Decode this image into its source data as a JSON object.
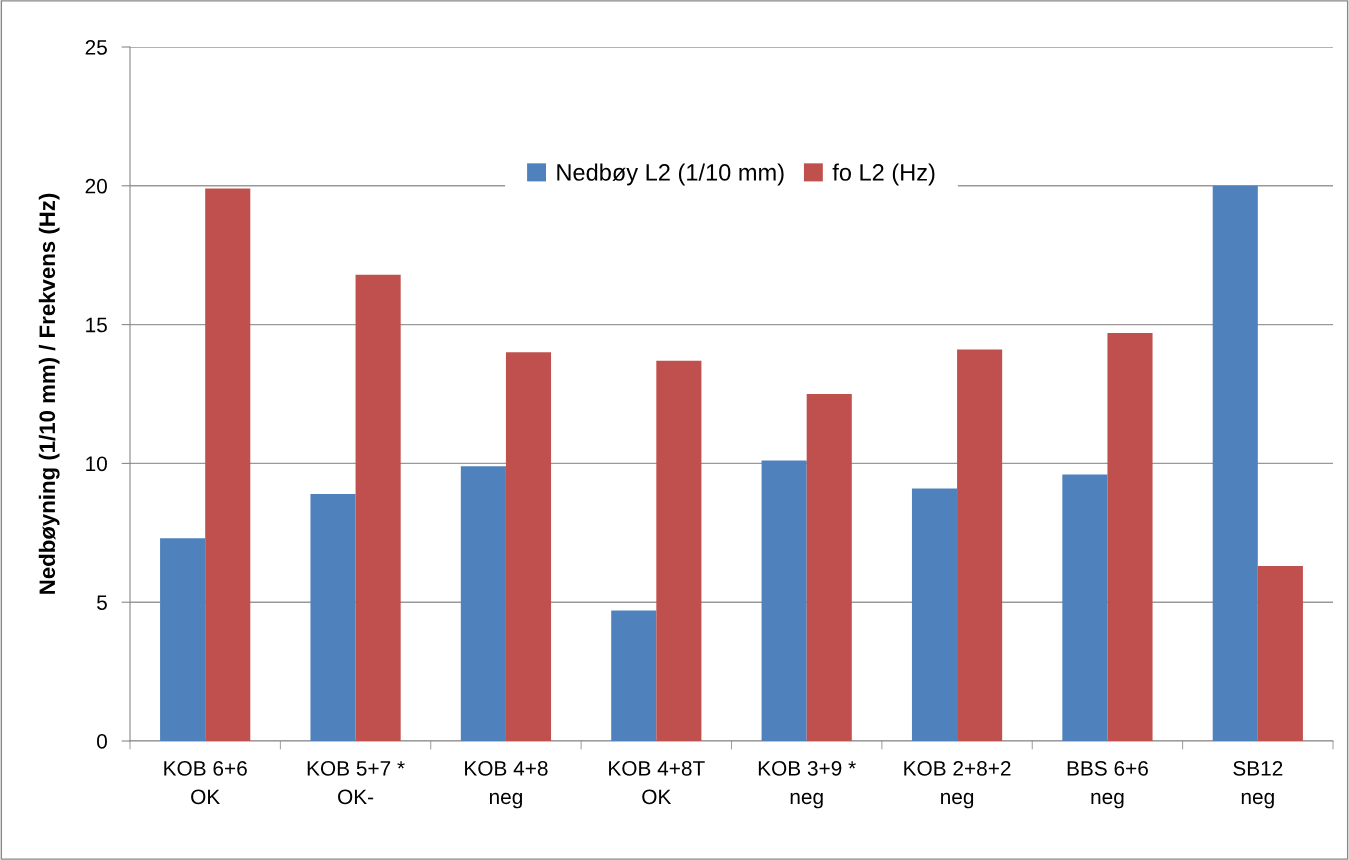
{
  "chart_data": {
    "type": "bar",
    "ylabel": "Nedbøyning (1/10 mm) / Frekvens (Hz)",
    "categories": [
      "KOB 6+6\nOK",
      "KOB 5+7 *\nOK-",
      "KOB 4+8\nneg",
      "KOB 4+8T\nOK",
      "KOB 3+9 *\nneg",
      "KOB 2+8+2\nneg",
      "BBS 6+6\nneg",
      "SB12\nneg"
    ],
    "series": [
      {
        "name": "Nedbøy L2 (1/10 mm)",
        "color": "#4f81bd",
        "values": [
          7.3,
          8.9,
          9.9,
          4.7,
          10.1,
          9.1,
          9.6,
          20.0
        ]
      },
      {
        "name": "fo L2 (Hz)",
        "color": "#c0504d",
        "values": [
          19.9,
          16.8,
          14.0,
          13.7,
          12.5,
          14.1,
          14.7,
          6.3
        ]
      }
    ],
    "ylim": [
      0,
      25
    ],
    "yticks": [
      0,
      5,
      10,
      15,
      20,
      25
    ],
    "grid": "y",
    "legend": "top"
  }
}
